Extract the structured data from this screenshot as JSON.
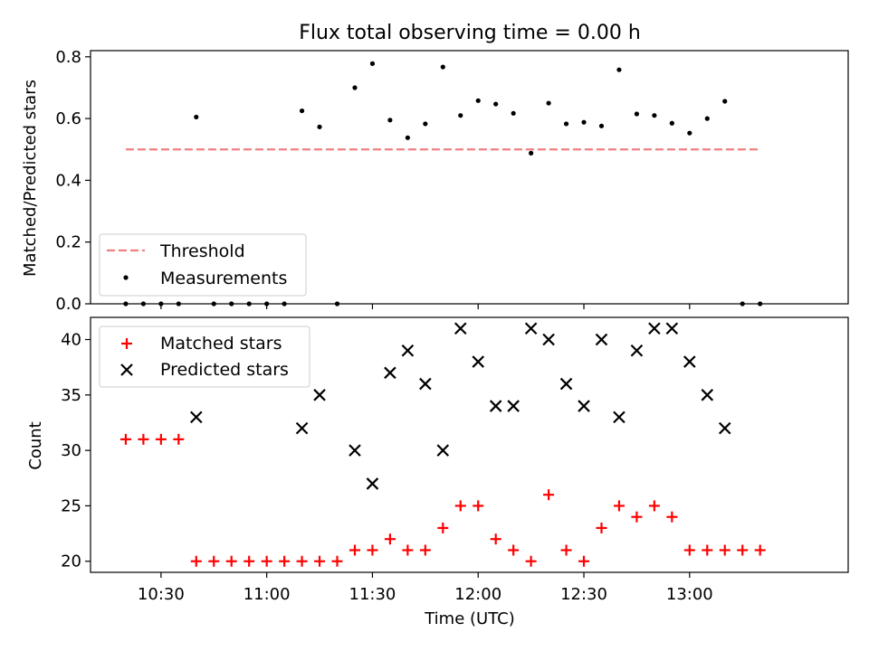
{
  "title": "Flux total observing time = 0.00 h",
  "xlabel": "Time (UTC)",
  "chart_data": [
    {
      "type": "scatter",
      "panel": "top",
      "ylabel": "Matched/Predicted stars",
      "ylim": [
        0,
        0.82
      ],
      "xlim": [
        "10:10",
        "13:45"
      ],
      "yticks": [
        "0.0",
        "0.2",
        "0.4",
        "0.6",
        "0.8"
      ],
      "legend": {
        "placement": "lower-left",
        "entries": [
          "Threshold",
          "Measurements"
        ]
      },
      "threshold": {
        "name": "Threshold",
        "value": 0.5,
        "x_start": "10:20",
        "x_end": "13:20",
        "color": "#f08080",
        "style": "dashed"
      },
      "series": [
        {
          "name": "Measurements",
          "color": "#000000",
          "x": [
            "10:20",
            "10:25",
            "10:30",
            "10:35",
            "10:40",
            "10:45",
            "10:50",
            "10:55",
            "11:00",
            "11:05",
            "11:10",
            "11:15",
            "11:20",
            "11:25",
            "11:30",
            "11:35",
            "11:40",
            "11:45",
            "11:50",
            "11:55",
            "12:00",
            "12:05",
            "12:10",
            "12:15",
            "12:20",
            "12:25",
            "12:30",
            "12:35",
            "12:40",
            "12:45",
            "12:50",
            "12:55",
            "13:00",
            "13:05",
            "13:10",
            "13:15",
            "13:20"
          ],
          "y": [
            0,
            0,
            0,
            0,
            0.605,
            0,
            0,
            0,
            0,
            0,
            0.625,
            0.573,
            0,
            0.7,
            0.778,
            0.595,
            0.538,
            0.583,
            0.767,
            0.61,
            0.658,
            0.647,
            0.617,
            0.488,
            0.65,
            0.583,
            0.588,
            0.576,
            0.758,
            0.615,
            0.61,
            0.585,
            0.553,
            0.6,
            0.656,
            0,
            0
          ]
        }
      ]
    },
    {
      "type": "scatter",
      "panel": "bottom",
      "ylabel": "Count",
      "ylim": [
        19,
        42
      ],
      "xlim": [
        "10:10",
        "13:45"
      ],
      "yticks": [
        "20",
        "25",
        "30",
        "35",
        "40"
      ],
      "xticks": [
        "10:30",
        "11:00",
        "11:30",
        "12:00",
        "12:30",
        "13:00"
      ],
      "legend": {
        "placement": "upper-left",
        "entries": [
          "Matched stars",
          "Predicted stars"
        ]
      },
      "series": [
        {
          "name": "Matched stars",
          "marker": "plus",
          "color": "#ff0000",
          "x": [
            "10:20",
            "10:25",
            "10:30",
            "10:35",
            "10:40",
            "10:45",
            "10:50",
            "10:55",
            "11:00",
            "11:05",
            "11:10",
            "11:15",
            "11:20",
            "11:25",
            "11:30",
            "11:35",
            "11:40",
            "11:45",
            "11:50",
            "11:55",
            "12:00",
            "12:05",
            "12:10",
            "12:15",
            "12:20",
            "12:25",
            "12:30",
            "12:35",
            "12:40",
            "12:45",
            "12:50",
            "12:55",
            "13:00",
            "13:05",
            "13:10",
            "13:15",
            "13:20"
          ],
          "y": [
            31,
            31,
            31,
            31,
            20,
            20,
            20,
            20,
            20,
            20,
            20,
            20,
            20,
            21,
            21,
            22,
            21,
            21,
            23,
            25,
            25,
            22,
            21,
            20,
            26,
            21,
            20,
            23,
            25,
            24,
            25,
            24,
            21,
            21,
            21,
            21,
            21
          ]
        },
        {
          "name": "Predicted stars",
          "marker": "x",
          "color": "#000000",
          "x": [
            "10:40",
            "11:10",
            "11:15",
            "11:25",
            "11:30",
            "11:35",
            "11:40",
            "11:45",
            "11:50",
            "11:55",
            "12:00",
            "12:05",
            "12:10",
            "12:15",
            "12:20",
            "12:25",
            "12:30",
            "12:35",
            "12:40",
            "12:45",
            "12:50",
            "12:55",
            "13:00",
            "13:05",
            "13:10"
          ],
          "y": [
            33,
            32,
            35,
            30,
            27,
            37,
            39,
            36,
            30,
            41,
            38,
            34,
            34,
            41,
            40,
            36,
            34,
            40,
            33,
            39,
            41,
            41,
            38,
            35,
            32
          ]
        }
      ]
    }
  ]
}
